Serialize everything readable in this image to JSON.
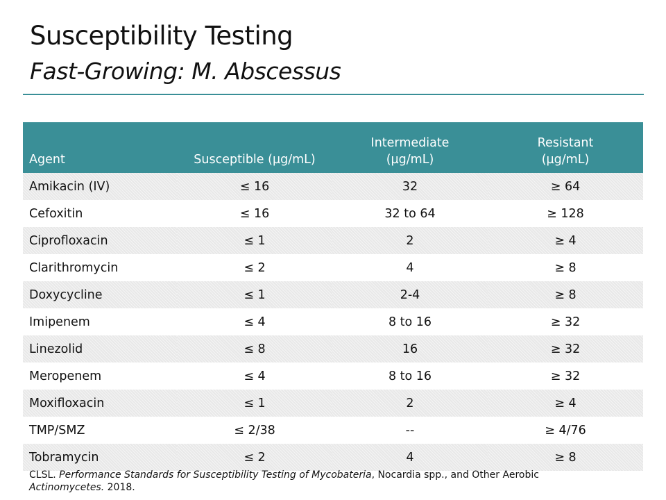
{
  "slide": {
    "title": "Susceptibility Testing",
    "subtitle": "Fast-Growing: M. Abscessus",
    "accent_color": "#3a8f97"
  },
  "table": {
    "headers": {
      "agent": "Agent",
      "susceptible": "Susceptible (µg/mL)",
      "intermediate_line1": "Intermediate",
      "intermediate_line2": "(µg/mL)",
      "resistant_line1": "Resistant",
      "resistant_line2": "(µg/mL)"
    },
    "rows": [
      {
        "agent": "Amikacin (IV)",
        "susceptible": "≤ 16",
        "intermediate": "32",
        "resistant": "≥ 64"
      },
      {
        "agent": "Cefoxitin",
        "susceptible": "≤ 16",
        "intermediate": "32 to 64",
        "resistant": "≥ 128"
      },
      {
        "agent": "Ciprofloxacin",
        "susceptible": "≤ 1",
        "intermediate": "2",
        "resistant": "≥ 4"
      },
      {
        "agent": "Clarithromycin",
        "susceptible": "≤ 2",
        "intermediate": "4",
        "resistant": "≥ 8"
      },
      {
        "agent": "Doxycycline",
        "susceptible": "≤ 1",
        "intermediate": "2-4",
        "resistant": "≥ 8"
      },
      {
        "agent": "Imipenem",
        "susceptible": "≤ 4",
        "intermediate": "8 to 16",
        "resistant": "≥ 32"
      },
      {
        "agent": "Linezolid",
        "susceptible": "≤ 8",
        "intermediate": "16",
        "resistant": "≥ 32"
      },
      {
        "agent": "Meropenem",
        "susceptible": "≤ 4",
        "intermediate": "8 to 16",
        "resistant": "≥ 32"
      },
      {
        "agent": "Moxifloxacin",
        "susceptible": "≤ 1",
        "intermediate": "2",
        "resistant": "≥ 4"
      },
      {
        "agent": "TMP/SMZ",
        "susceptible": "≤ 2/38",
        "intermediate": "--",
        "resistant": "≥ 4/76"
      },
      {
        "agent": "Tobramycin",
        "susceptible": "≤ 2",
        "intermediate": "4",
        "resistant": "≥ 8"
      }
    ]
  },
  "citation": {
    "prefix": "CLSL.",
    "title_part1": "Performance Standards for Susceptibility Testing of Mycobateria",
    "middle": ", Nocardia spp., and Other Aerobic",
    "title_part2": "Actinomycetes.",
    "year": "2018."
  }
}
